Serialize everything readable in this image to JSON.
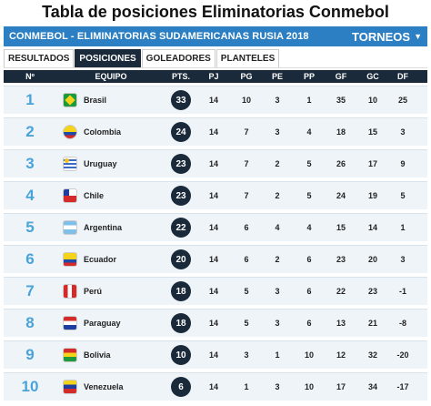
{
  "page": {
    "title": "Tabla de posiciones Eliminatorias Conmebol"
  },
  "widget": {
    "bar_title": "CONMEBOL - ELIMINATORIAS SUDAMERICANAS RUSIA 2018",
    "tournaments_label": "TORNEOS",
    "tabs": [
      {
        "label": "RESULTADOS",
        "active": false
      },
      {
        "label": "POSICIONES",
        "active": true
      },
      {
        "label": "GOLEADORES",
        "active": false
      },
      {
        "label": "PLANTELES",
        "active": false
      }
    ]
  },
  "table": {
    "headers": {
      "num": "Nº",
      "team": "EQUIPO",
      "pts": "PTS.",
      "pj": "PJ",
      "pg": "PG",
      "pe": "PE",
      "pp": "PP",
      "gf": "GF",
      "gc": "GC",
      "df": "DF"
    },
    "rows": [
      {
        "pos": "1",
        "team": "Brasil",
        "flag": "flag-brazil",
        "pts": "33",
        "pj": "14",
        "pg": "10",
        "pe": "3",
        "pp": "1",
        "gf": "35",
        "gc": "10",
        "df": "25"
      },
      {
        "pos": "2",
        "team": "Colombia",
        "flag": "flag-colombia",
        "pts": "24",
        "pj": "14",
        "pg": "7",
        "pe": "3",
        "pp": "4",
        "gf": "18",
        "gc": "15",
        "df": "3"
      },
      {
        "pos": "3",
        "team": "Uruguay",
        "flag": "flag-uruguay",
        "pts": "23",
        "pj": "14",
        "pg": "7",
        "pe": "2",
        "pp": "5",
        "gf": "26",
        "gc": "17",
        "df": "9"
      },
      {
        "pos": "4",
        "team": "Chile",
        "flag": "flag-chile",
        "pts": "23",
        "pj": "14",
        "pg": "7",
        "pe": "2",
        "pp": "5",
        "gf": "24",
        "gc": "19",
        "df": "5"
      },
      {
        "pos": "5",
        "team": "Argentina",
        "flag": "flag-argentina",
        "pts": "22",
        "pj": "14",
        "pg": "6",
        "pe": "4",
        "pp": "4",
        "gf": "15",
        "gc": "14",
        "df": "1"
      },
      {
        "pos": "6",
        "team": "Ecuador",
        "flag": "flag-ecuador",
        "pts": "20",
        "pj": "14",
        "pg": "6",
        "pe": "2",
        "pp": "6",
        "gf": "23",
        "gc": "20",
        "df": "3"
      },
      {
        "pos": "7",
        "team": "Perú",
        "flag": "flag-peru",
        "pts": "18",
        "pj": "14",
        "pg": "5",
        "pe": "3",
        "pp": "6",
        "gf": "22",
        "gc": "23",
        "df": "-1"
      },
      {
        "pos": "8",
        "team": "Paraguay",
        "flag": "flag-paraguay",
        "pts": "18",
        "pj": "14",
        "pg": "5",
        "pe": "3",
        "pp": "6",
        "gf": "13",
        "gc": "21",
        "df": "-8"
      },
      {
        "pos": "9",
        "team": "Bolivia",
        "flag": "flag-bolivia",
        "pts": "10",
        "pj": "14",
        "pg": "3",
        "pe": "1",
        "pp": "10",
        "gf": "12",
        "gc": "32",
        "df": "-20"
      },
      {
        "pos": "10",
        "team": "Venezuela",
        "flag": "flag-venezuela",
        "pts": "6",
        "pj": "14",
        "pg": "1",
        "pe": "3",
        "pp": "10",
        "gf": "17",
        "gc": "34",
        "df": "-17"
      }
    ]
  }
}
